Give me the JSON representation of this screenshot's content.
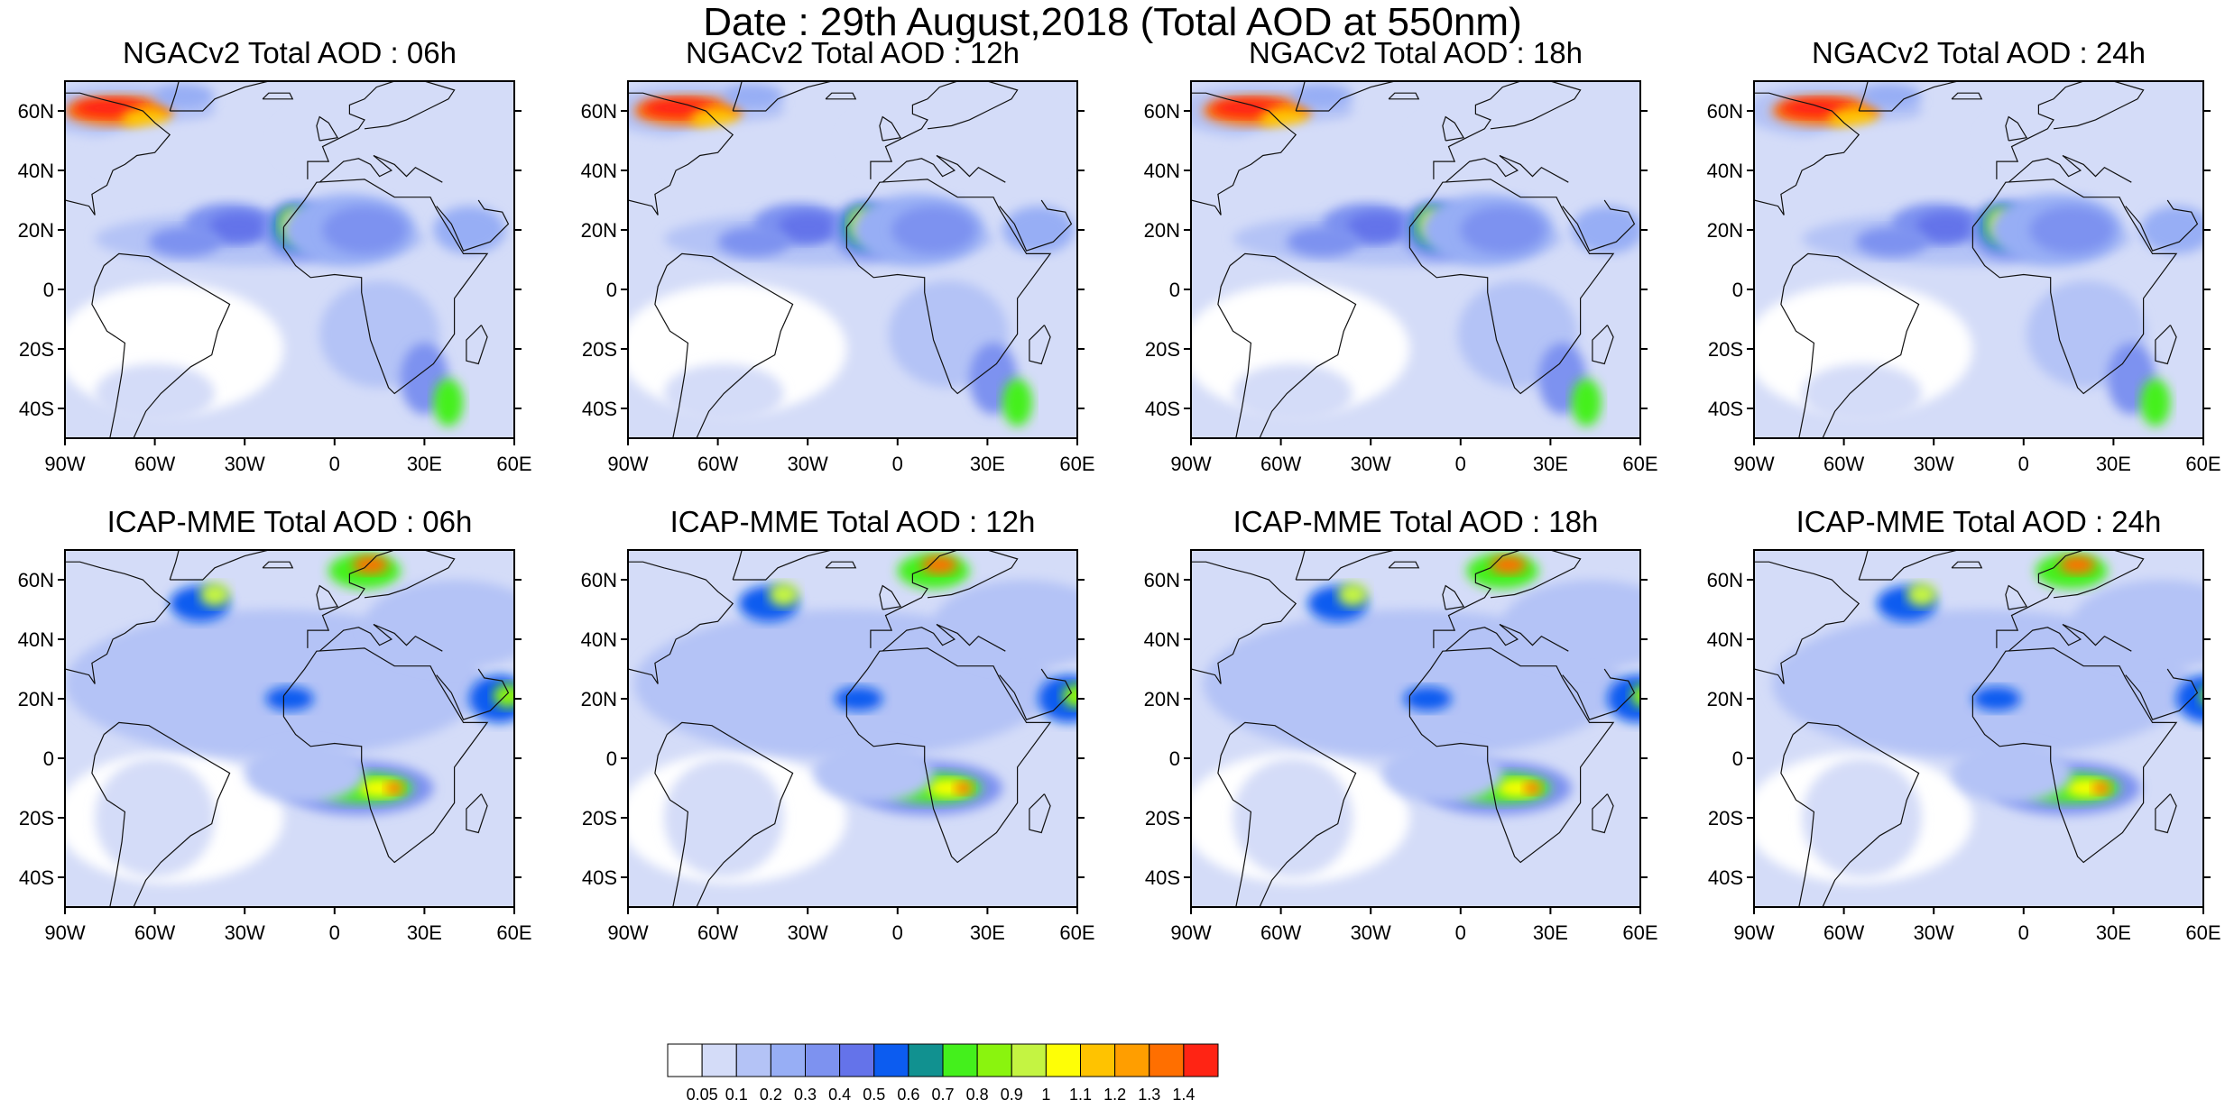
{
  "figure": {
    "title": "Date : 29th August,2018 (Total AOD at 550nm)"
  },
  "axes": {
    "lat_labels": [
      "60N",
      "40N",
      "20N",
      "0",
      "20S",
      "40S"
    ],
    "lon_labels": [
      "90W",
      "60W",
      "30W",
      "0",
      "30E",
      "60E"
    ],
    "lat_values": [
      60,
      40,
      20,
      0,
      -20,
      -40
    ],
    "lon_values": [
      -90,
      -60,
      -30,
      0,
      30,
      60
    ],
    "lat_range": [
      -50,
      70
    ],
    "lon_range": [
      -90,
      60
    ]
  },
  "panels": [
    {
      "title": "NGACv2 Total AOD : 06h",
      "model": "NGACv2",
      "hour": "06h"
    },
    {
      "title": "NGACv2 Total AOD : 12h",
      "model": "NGACv2",
      "hour": "12h"
    },
    {
      "title": "NGACv2 Total AOD : 18h",
      "model": "NGACv2",
      "hour": "18h"
    },
    {
      "title": "NGACv2 Total AOD : 24h",
      "model": "NGACv2",
      "hour": "24h"
    },
    {
      "title": "ICAP-MME Total AOD : 06h",
      "model": "ICAP-MME",
      "hour": "06h"
    },
    {
      "title": "ICAP-MME Total AOD : 12h",
      "model": "ICAP-MME",
      "hour": "12h"
    },
    {
      "title": "ICAP-MME Total AOD : 18h",
      "model": "ICAP-MME",
      "hour": "18h"
    },
    {
      "title": "ICAP-MME Total AOD : 24h",
      "model": "ICAP-MME",
      "hour": "24h"
    }
  ],
  "colorbar": {
    "labels": [
      "0.05",
      "0.1",
      "0.2",
      "0.3",
      "0.4",
      "0.5",
      "0.6",
      "0.7",
      "0.8",
      "0.9",
      "1",
      "1.1",
      "1.2",
      "1.3",
      "1.4"
    ],
    "colors": [
      "#ffffff",
      "#d4dcf8",
      "#b4c3f6",
      "#97aef5",
      "#7d92f0",
      "#6473ea",
      "#0c5cf0",
      "#119190",
      "#44f01c",
      "#8af40e",
      "#c4f442",
      "#fefe06",
      "#ffc300",
      "#ff9e00",
      "#ff6f00",
      "#ff2414"
    ]
  }
}
